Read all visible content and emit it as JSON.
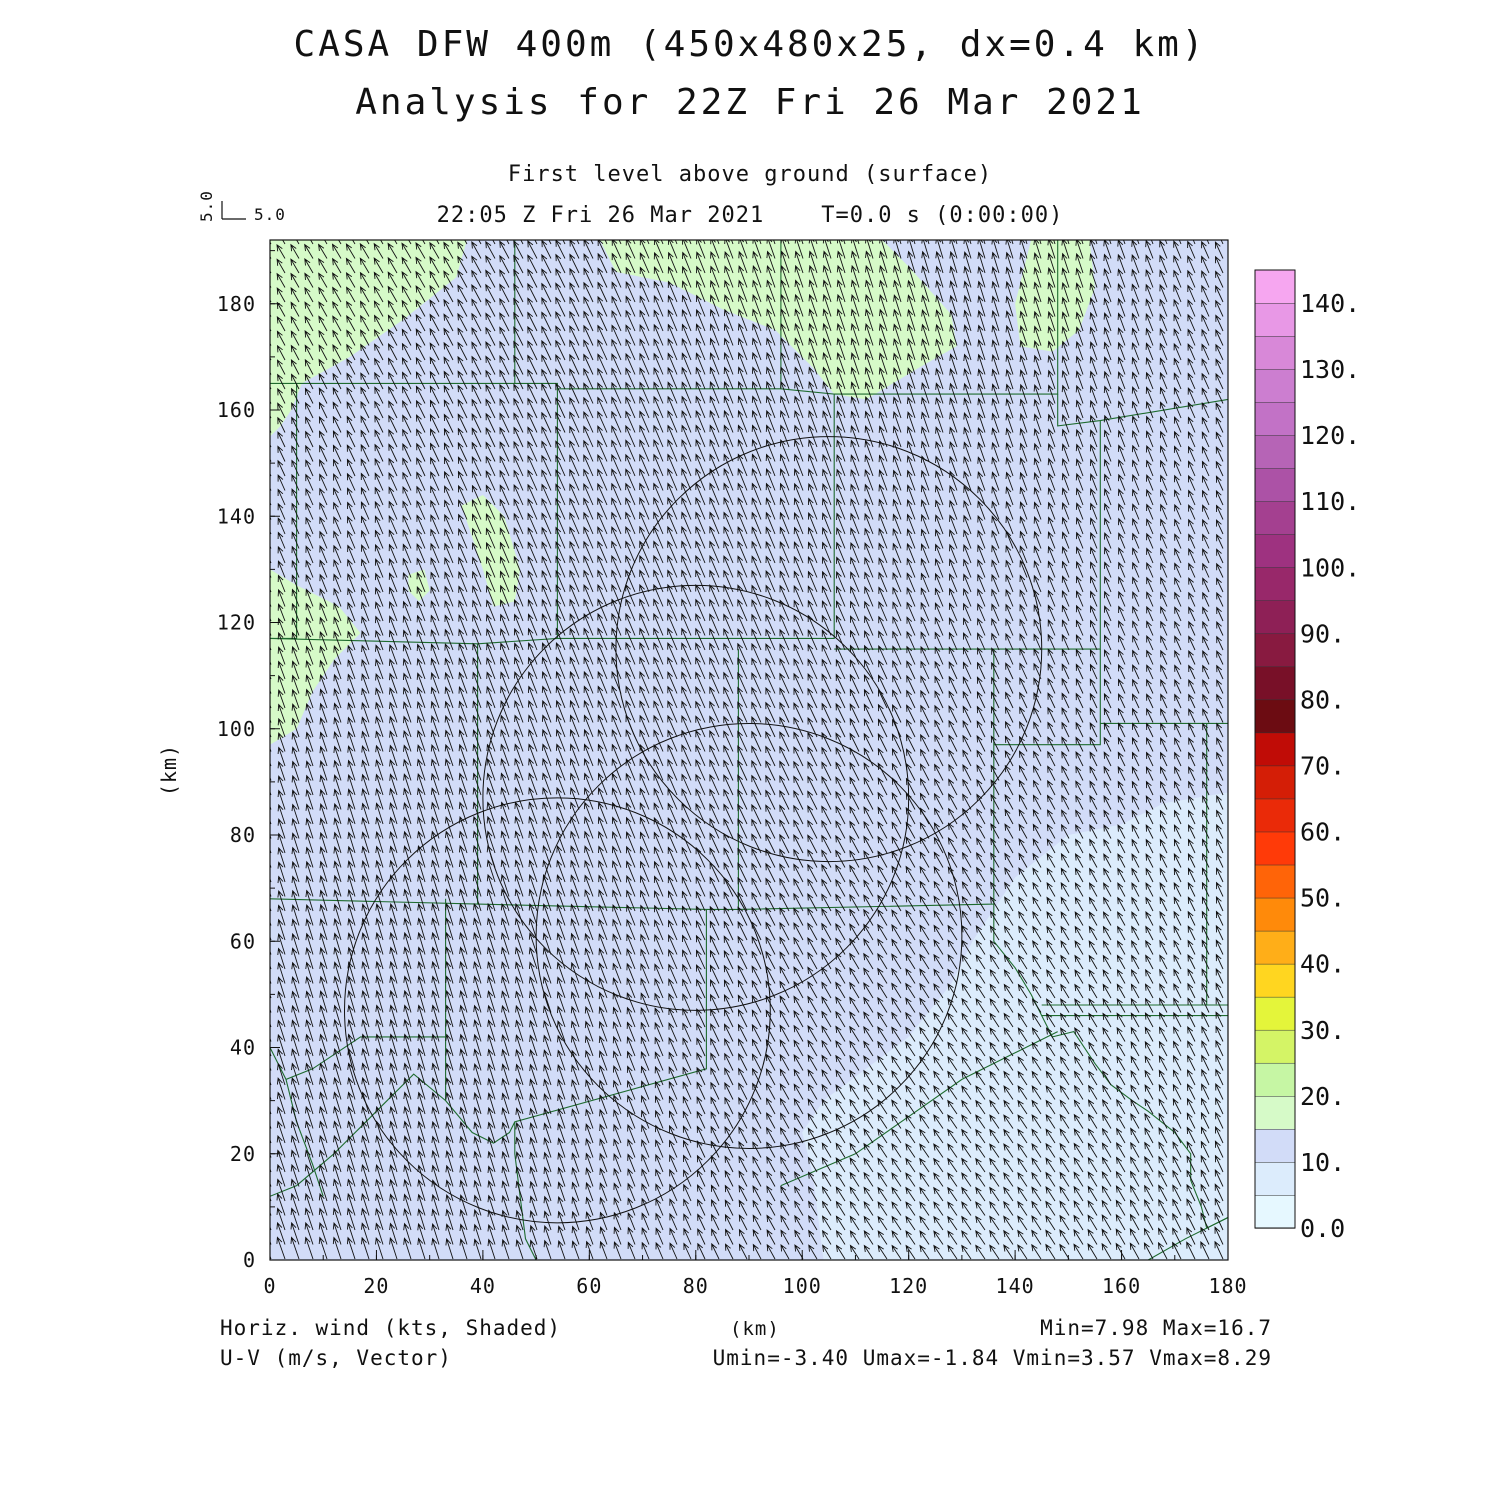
{
  "header": {
    "title_line1": "CASA DFW 400m (450x480x25, dx=0.4 km)",
    "title_line2": "Analysis for 22Z Fri 26 Mar 2021",
    "subtitle": "First level above ground (surface)",
    "time_line": "22:05 Z Fri 26 Mar 2021    T=0.0 s (0:00:00)",
    "ref_vector_u": "5.0",
    "ref_vector_v": "5.0"
  },
  "footer": {
    "left_line1": "Horiz. wind (kts, Shaded)",
    "left_line2": "U-V (m/s, Vector)",
    "center": "(km)",
    "right_line1": "Min=7.98 Max=16.7",
    "right_line2": "Umin=-3.40 Umax=-1.84 Vmin=3.57 Vmax=8.29"
  },
  "colors": {
    "shade_0_5": "#e6f8ff",
    "shade_5_10": "#dcecfc",
    "shade_10_15": "#d2dcf8",
    "shade_15_20": "#d6fac8",
    "vector": "#111111",
    "boundary": "#1e6b2e",
    "range_ring": "#111111"
  },
  "chart_data": {
    "type": "heatmap",
    "xlabel": "(km)",
    "ylabel": "(km)",
    "xlim": [
      0,
      180
    ],
    "ylim": [
      0,
      192
    ],
    "x_ticks": [
      0,
      20,
      40,
      60,
      80,
      100,
      120,
      140,
      160,
      180
    ],
    "y_ticks": [
      0,
      20,
      40,
      60,
      80,
      100,
      120,
      140,
      160,
      180
    ],
    "shaded_field": "Horiz. wind (kts, Shaded)",
    "vector_field": "U-V (m/s, Vector)",
    "field_min": 7.98,
    "field_max": 16.7,
    "u_min": -3.4,
    "u_max": -1.84,
    "v_min": 3.57,
    "v_max": 8.29,
    "colorbar": {
      "labels": [
        "0.0",
        "10.",
        "20.",
        "30.",
        "40.",
        "50.",
        "60.",
        "70.",
        "80.",
        "90.",
        "100.",
        "110.",
        "120.",
        "130.",
        "140."
      ],
      "levels": [
        0,
        5,
        10,
        15,
        20,
        25,
        30,
        35,
        40,
        45,
        50,
        55,
        60,
        65,
        70,
        75,
        80,
        85,
        90,
        95,
        100,
        105,
        110,
        115,
        120,
        125,
        130,
        135,
        140,
        145
      ],
      "colors": [
        "#e6f8ff",
        "#dcecfc",
        "#d2dcf8",
        "#d6fac8",
        "#c6f6a4",
        "#d4f466",
        "#e4f53a",
        "#ffd620",
        "#ffae18",
        "#ff8a0a",
        "#ff6408",
        "#ff3a08",
        "#ea2a08",
        "#d41e06",
        "#c00c06",
        "#6c0c12",
        "#781028",
        "#881a40",
        "#8e2056",
        "#98286a",
        "#9e3280",
        "#a44090",
        "#ac52a6",
        "#b664b6",
        "#c272c6",
        "#cc7ed0",
        "#d888d8",
        "#e898e6",
        "#f6a6f0"
      ]
    },
    "green_regions": [
      {
        "name": "nw-corner",
        "points": [
          [
            0,
            192
          ],
          [
            37,
            192
          ],
          [
            35,
            185
          ],
          [
            25,
            177
          ],
          [
            15,
            170
          ],
          [
            6,
            165
          ],
          [
            4,
            160
          ],
          [
            2,
            157
          ],
          [
            0,
            155
          ]
        ]
      },
      {
        "name": "west-edge",
        "points": [
          [
            0,
            130
          ],
          [
            5,
            127
          ],
          [
            13,
            123
          ],
          [
            17,
            118
          ],
          [
            12,
            113
          ],
          [
            8,
            107
          ],
          [
            5,
            100
          ],
          [
            0,
            97
          ]
        ]
      },
      {
        "name": "north-center",
        "points": [
          [
            62,
            192
          ],
          [
            115,
            192
          ],
          [
            120,
            187
          ],
          [
            128,
            178
          ],
          [
            129,
            172
          ],
          [
            122,
            168
          ],
          [
            112,
            162
          ],
          [
            106,
            163
          ],
          [
            102,
            168
          ],
          [
            95,
            175
          ],
          [
            85,
            179
          ],
          [
            75,
            184
          ],
          [
            65,
            186
          ]
        ]
      },
      {
        "name": "ne-patch",
        "points": [
          [
            143,
            192
          ],
          [
            154,
            192
          ],
          [
            155,
            183
          ],
          [
            152,
            175
          ],
          [
            147,
            171
          ],
          [
            141,
            172
          ],
          [
            140,
            180
          ]
        ]
      },
      {
        "name": "center-blob",
        "points": [
          [
            36,
            142
          ],
          [
            40,
            144
          ],
          [
            44,
            140
          ],
          [
            47,
            130
          ],
          [
            46,
            124
          ],
          [
            42,
            123
          ],
          [
            40,
            130
          ]
        ]
      },
      {
        "name": "small-dot",
        "points": [
          [
            26,
            129
          ],
          [
            29,
            130
          ],
          [
            30,
            126
          ],
          [
            28,
            124
          ],
          [
            26,
            126
          ]
        ]
      }
    ],
    "light_regions": [
      {
        "name": "se-light",
        "points": [
          [
            180,
            88
          ],
          [
            168,
            86
          ],
          [
            160,
            82
          ],
          [
            150,
            80
          ],
          [
            140,
            72
          ],
          [
            132,
            60
          ],
          [
            128,
            52
          ],
          [
            120,
            42
          ],
          [
            112,
            36
          ],
          [
            104,
            30
          ],
          [
            100,
            24
          ],
          [
            102,
            16
          ],
          [
            103,
            8
          ],
          [
            104,
            0
          ],
          [
            180,
            0
          ]
        ]
      }
    ],
    "range_rings": [
      {
        "cx": 105,
        "cy": 115,
        "r": 40
      },
      {
        "cx": 80,
        "cy": 87,
        "r": 40
      },
      {
        "cx": 90,
        "cy": 61,
        "r": 40
      },
      {
        "cx": 54,
        "cy": 47,
        "r": 40
      }
    ],
    "county_lines": [
      [
        [
          0,
          165
        ],
        [
          46,
          165
        ],
        [
          46,
          192
        ]
      ],
      [
        [
          46,
          165
        ],
        [
          54,
          165
        ],
        [
          54,
          164
        ],
        [
          96,
          164
        ],
        [
          96,
          192
        ]
      ],
      [
        [
          54,
          164
        ],
        [
          54,
          117
        ]
      ],
      [
        [
          96,
          164
        ],
        [
          106,
          163
        ],
        [
          106,
          117
        ],
        [
          54,
          117
        ]
      ],
      [
        [
          106,
          163
        ],
        [
          148,
          163
        ],
        [
          148,
          192
        ]
      ],
      [
        [
          148,
          163
        ],
        [
          148,
          157
        ],
        [
          156,
          158
        ],
        [
          180,
          162
        ]
      ],
      [
        [
          156,
          158
        ],
        [
          156,
          115
        ],
        [
          106,
          115
        ]
      ],
      [
        [
          5,
          165
        ],
        [
          5,
          117
        ],
        [
          0,
          117
        ]
      ],
      [
        [
          0,
          117
        ],
        [
          39,
          116
        ],
        [
          54,
          117
        ]
      ],
      [
        [
          39,
          116
        ],
        [
          39,
          67
        ],
        [
          0,
          68
        ]
      ],
      [
        [
          39,
          67
        ],
        [
          82,
          66
        ],
        [
          88,
          66
        ]
      ],
      [
        [
          88,
          115
        ],
        [
          88,
          66
        ]
      ],
      [
        [
          136,
          115
        ],
        [
          136,
          67
        ],
        [
          88,
          66
        ]
      ],
      [
        [
          136,
          97
        ],
        [
          156,
          97
        ],
        [
          156,
          115
        ]
      ],
      [
        [
          156,
          101
        ],
        [
          180,
          101
        ]
      ],
      [
        [
          176,
          101
        ],
        [
          176,
          48
        ],
        [
          180,
          48
        ]
      ],
      [
        [
          136,
          67
        ],
        [
          136,
          60
        ],
        [
          140,
          55
        ],
        [
          143,
          50
        ],
        [
          145,
          46
        ],
        [
          147,
          42
        ],
        [
          151,
          43
        ],
        [
          155,
          37
        ],
        [
          158,
          33
        ],
        [
          162,
          30
        ],
        [
          165,
          28
        ],
        [
          170,
          24
        ],
        [
          173,
          20
        ],
        [
          173,
          15
        ],
        [
          175,
          10
        ],
        [
          176,
          6
        ],
        [
          180,
          8
        ]
      ],
      [
        [
          145,
          48
        ],
        [
          162,
          48
        ],
        [
          176,
          48
        ]
      ],
      [
        [
          82,
          66
        ],
        [
          82,
          36
        ],
        [
          46,
          26
        ],
        [
          45,
          24
        ],
        [
          42,
          22
        ],
        [
          38,
          24
        ],
        [
          33,
          30
        ],
        [
          27,
          35
        ],
        [
          20,
          28
        ],
        [
          12,
          20
        ],
        [
          5,
          14
        ],
        [
          0,
          12
        ]
      ],
      [
        [
          33,
          30
        ],
        [
          33,
          42
        ],
        [
          17,
          42
        ],
        [
          8,
          36
        ],
        [
          3,
          34
        ],
        [
          0,
          40
        ]
      ],
      [
        [
          33,
          42
        ],
        [
          33,
          68
        ]
      ],
      [
        [
          46,
          26
        ],
        [
          46,
          20
        ],
        [
          47,
          12
        ],
        [
          48,
          4
        ],
        [
          50,
          0
        ]
      ],
      [
        [
          96,
          14
        ],
        [
          110,
          20
        ],
        [
          120,
          27
        ],
        [
          130,
          34
        ],
        [
          140,
          39
        ],
        [
          148,
          43
        ]
      ],
      [
        [
          145,
          46
        ],
        [
          180,
          46
        ]
      ],
      [
        [
          165,
          0
        ],
        [
          172,
          4
        ],
        [
          180,
          8
        ]
      ],
      [
        [
          3,
          34
        ],
        [
          5,
          26
        ],
        [
          8,
          18
        ],
        [
          10,
          12
        ]
      ]
    ]
  }
}
